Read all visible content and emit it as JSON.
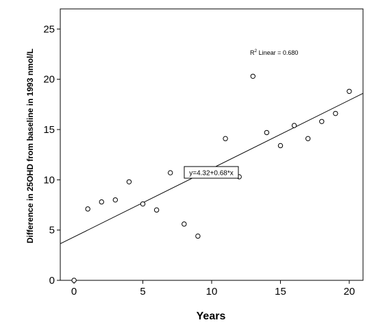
{
  "chart_data": {
    "type": "scatter",
    "xlabel": "Years",
    "ylabel": "Difference in 25OHD from baseline in 1993  nmol/L",
    "xlim": [
      -1,
      21
    ],
    "ylim": [
      0,
      27
    ],
    "x_ticks": [
      0,
      5,
      10,
      15,
      20
    ],
    "y_ticks": [
      0,
      5,
      10,
      15,
      20,
      25
    ],
    "grid": false,
    "legend": "none",
    "points": [
      {
        "x": 0,
        "y": 0.0
      },
      {
        "x": 1,
        "y": 7.1
      },
      {
        "x": 2,
        "y": 7.8
      },
      {
        "x": 3,
        "y": 8.0
      },
      {
        "x": 4,
        "y": 9.8
      },
      {
        "x": 5,
        "y": 7.6
      },
      {
        "x": 6,
        "y": 7.0
      },
      {
        "x": 7,
        "y": 10.7
      },
      {
        "x": 8,
        "y": 5.6
      },
      {
        "x": 9,
        "y": 4.4
      },
      {
        "x": 11,
        "y": 14.1
      },
      {
        "x": 12,
        "y": 10.3
      },
      {
        "x": 13,
        "y": 20.3
      },
      {
        "x": 14,
        "y": 14.7
      },
      {
        "x": 15,
        "y": 13.4
      },
      {
        "x": 16,
        "y": 15.4
      },
      {
        "x": 17,
        "y": 14.1
      },
      {
        "x": 18,
        "y": 15.8
      },
      {
        "x": 19,
        "y": 16.6
      },
      {
        "x": 20,
        "y": 18.8
      }
    ],
    "fit_line": {
      "intercept": 4.32,
      "slope": 0.68
    },
    "fit_equation": "y=4.32+0.68*x",
    "r2_prefix": "R",
    "r2_sup": "2",
    "r2_text": " Linear = 0.680",
    "colors": {
      "point_stroke": "#000000",
      "point_fill": "#ffffff",
      "line": "#000000",
      "axis": "#000000",
      "background": "#ffffff"
    }
  }
}
